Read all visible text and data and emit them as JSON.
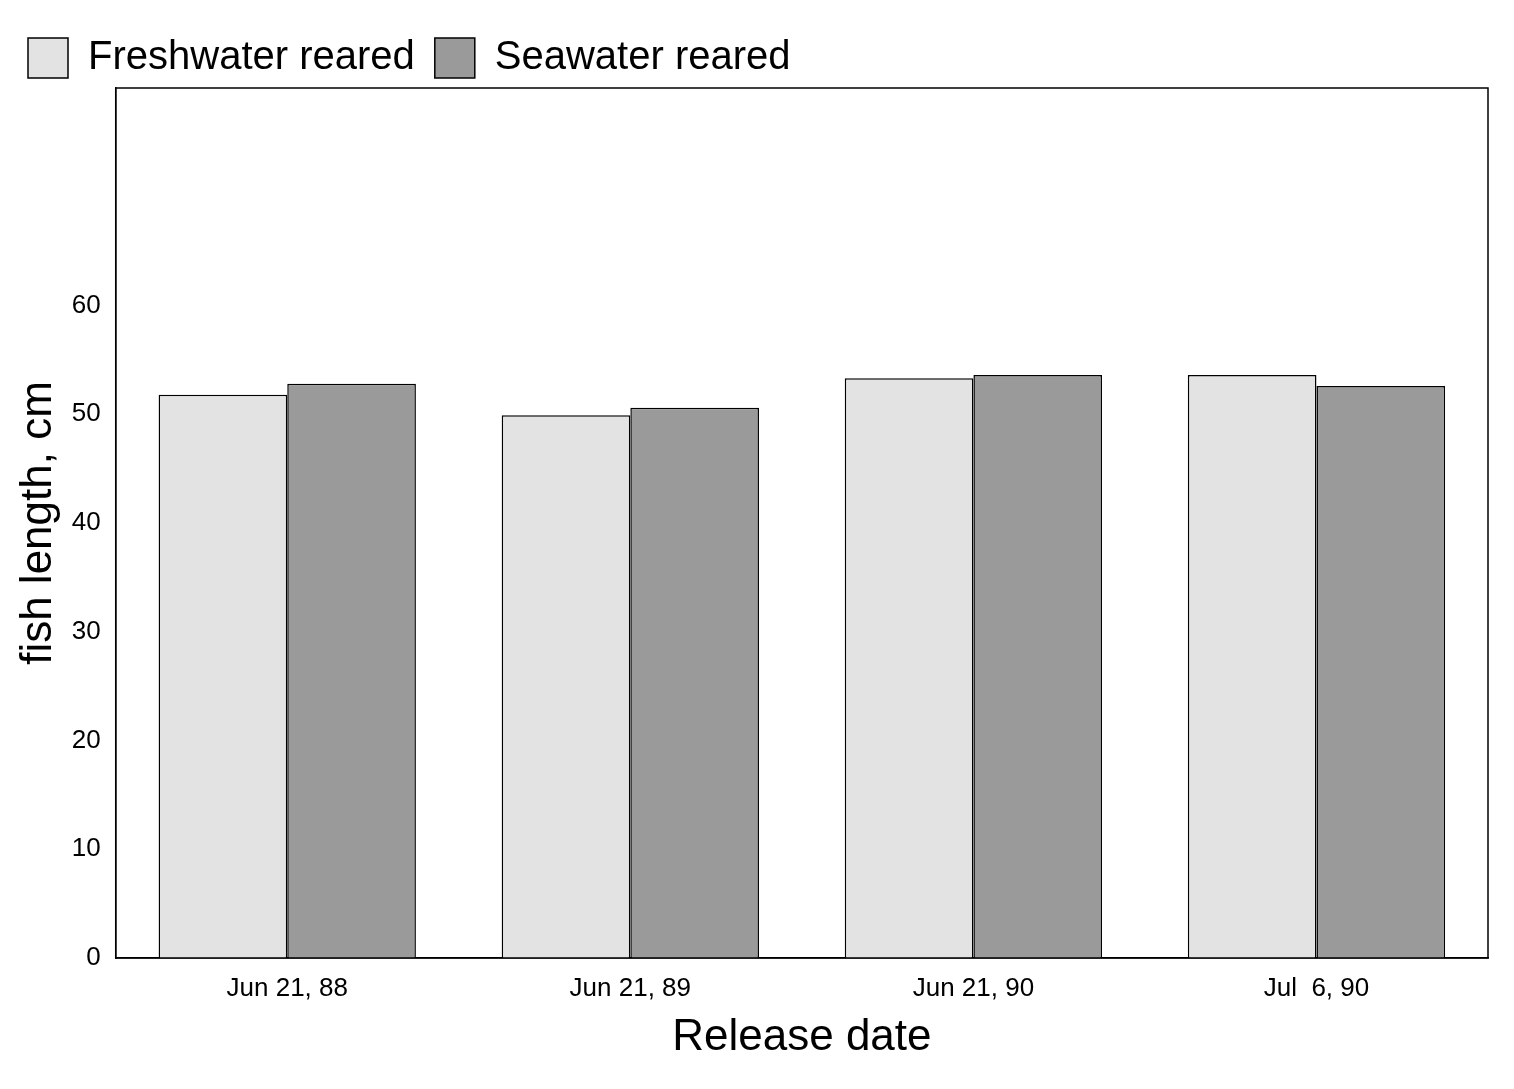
{
  "chart_data": {
    "type": "bar",
    "xlabel": "Release date",
    "ylabel": "fish length, cm",
    "categories": [
      "Jun 21, 88",
      "Jun 21, 89",
      "Jun 21, 90",
      "Jul  6, 90"
    ],
    "series": [
      {
        "name": "Freshwater reared",
        "color": "#e3e3e3",
        "values": [
          51.8,
          49.9,
          53.3,
          53.6
        ]
      },
      {
        "name": "Seawater reared",
        "color": "#9a9a9a",
        "values": [
          52.8,
          50.6,
          53.6,
          52.6
        ]
      }
    ],
    "ylim": [
      0,
      80
    ],
    "yticks": [
      0,
      10,
      20,
      30,
      40,
      50,
      60
    ],
    "grid": false,
    "legend": "top left"
  }
}
